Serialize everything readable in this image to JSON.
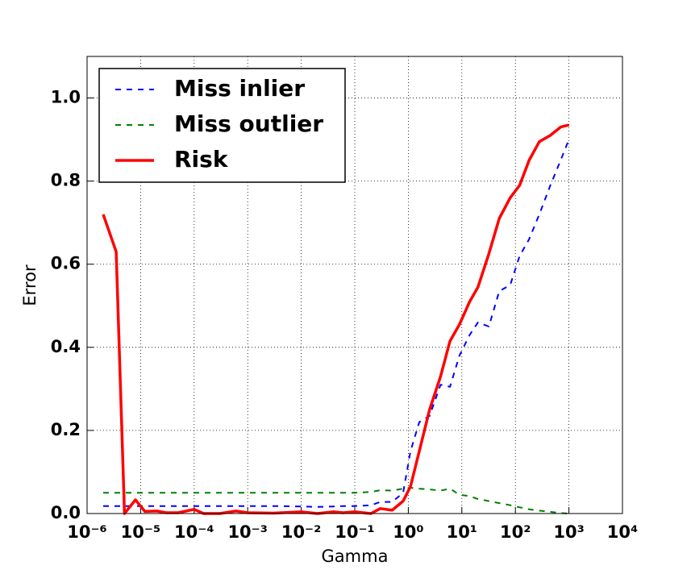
{
  "chart_data": {
    "type": "line",
    "xlabel": "Gamma",
    "ylabel": "Error",
    "xscale": "log",
    "grid": true,
    "legend_loc": "upper left",
    "x": [
      2e-06,
      3.5e-06,
      5e-06,
      8e-06,
      1.2e-05,
      2e-05,
      3e-05,
      5e-05,
      0.0001,
      0.00015,
      0.0003,
      0.0006,
      0.001,
      0.003,
      0.01,
      0.02,
      0.04,
      0.06,
      0.1,
      0.2,
      0.3,
      0.5,
      0.8,
      1.1,
      1.6,
      2.5,
      4,
      6,
      9,
      14,
      20,
      32,
      50,
      80,
      120,
      180,
      280,
      450,
      700,
      1000
    ],
    "series": [
      {
        "name": "Miss inlier",
        "color": "#0000ff",
        "dash": "dashed",
        "width": 2,
        "values": [
          0.018,
          0.018,
          0.018,
          0.018,
          0.018,
          0.018,
          0.018,
          0.018,
          0.018,
          0.018,
          0.018,
          0.018,
          0.018,
          0.018,
          0.017,
          0.016,
          0.017,
          0.018,
          0.018,
          0.02,
          0.028,
          0.028,
          0.05,
          0.15,
          0.22,
          0.235,
          0.31,
          0.305,
          0.38,
          0.43,
          0.46,
          0.45,
          0.535,
          0.55,
          0.62,
          0.66,
          0.72,
          0.79,
          0.85,
          0.9
        ]
      },
      {
        "name": "Miss outlier",
        "color": "#008000",
        "dash": "dashed",
        "width": 2,
        "values": [
          0.05,
          0.05,
          0.05,
          0.05,
          0.05,
          0.05,
          0.05,
          0.05,
          0.05,
          0.05,
          0.05,
          0.05,
          0.05,
          0.05,
          0.05,
          0.05,
          0.05,
          0.05,
          0.05,
          0.052,
          0.056,
          0.055,
          0.06,
          0.062,
          0.06,
          0.058,
          0.055,
          0.06,
          0.045,
          0.042,
          0.035,
          0.03,
          0.025,
          0.02,
          0.015,
          0.01,
          0.007,
          0.004,
          0.001,
          0.0
        ]
      },
      {
        "name": "Risk",
        "color": "#ff0000",
        "dash": "solid",
        "width": 3.5,
        "values": [
          0.72,
          0.63,
          0.0,
          0.033,
          0.005,
          0.006,
          0.002,
          0.002,
          0.01,
          0.0,
          0.0,
          0.006,
          0.002,
          0.001,
          0.004,
          0.0,
          0.004,
          0.002,
          0.004,
          0.0,
          0.012,
          0.008,
          0.03,
          0.065,
          0.15,
          0.25,
          0.33,
          0.415,
          0.455,
          0.51,
          0.545,
          0.625,
          0.71,
          0.76,
          0.79,
          0.85,
          0.895,
          0.91,
          0.93,
          0.935
        ]
      }
    ],
    "xlim": [
      1e-06,
      10000.0
    ],
    "xticks": [
      {
        "value": 1e-06,
        "label": "10⁻⁶"
      },
      {
        "value": 1e-05,
        "label": "10⁻⁵"
      },
      {
        "value": 0.0001,
        "label": "10⁻⁴"
      },
      {
        "value": 0.001,
        "label": "10⁻³"
      },
      {
        "value": 0.01,
        "label": "10⁻²"
      },
      {
        "value": 0.1,
        "label": "10⁻¹"
      },
      {
        "value": 1,
        "label": "10⁰"
      },
      {
        "value": 10,
        "label": "10¹"
      },
      {
        "value": 100,
        "label": "10²"
      },
      {
        "value": 1000,
        "label": "10³"
      },
      {
        "value": 10000,
        "label": "10⁴"
      }
    ],
    "ylim": [
      0,
      1.1
    ],
    "yticks": [
      {
        "value": 0,
        "label": "0.0"
      },
      0.2,
      0.4,
      0.6,
      0.8,
      {
        "value": 1,
        "label": "1.0"
      }
    ]
  }
}
